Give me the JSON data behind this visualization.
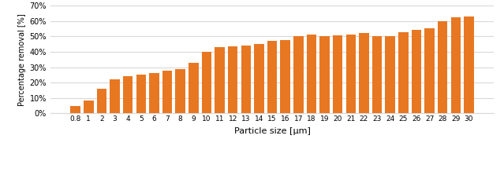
{
  "categories": [
    "0.8",
    "1",
    "2",
    "3",
    "4",
    "5",
    "6",
    "7",
    "8",
    "9",
    "10",
    "11",
    "12",
    "13",
    "14",
    "15",
    "16",
    "17",
    "18",
    "19",
    "20",
    "21",
    "22",
    "23",
    "24",
    "25",
    "26",
    "27",
    "28",
    "29",
    "30"
  ],
  "values": [
    5,
    8.5,
    16,
    22,
    24,
    25,
    26,
    27.5,
    29,
    33,
    40,
    43,
    43.5,
    44,
    45,
    47,
    47.5,
    50,
    51,
    50,
    50.5,
    51,
    52,
    50,
    50,
    52.5,
    54,
    55,
    60,
    62.5,
    63
  ],
  "bar_color": "#E87722",
  "ylabel": "Percentage removal [%]",
  "xlabel": "Particle size [μm]",
  "ylim": [
    0,
    70
  ],
  "yticks": [
    0,
    10,
    20,
    30,
    40,
    50,
    60,
    70
  ],
  "background_color": "#ffffff",
  "grid_color": "#d9d9d9"
}
